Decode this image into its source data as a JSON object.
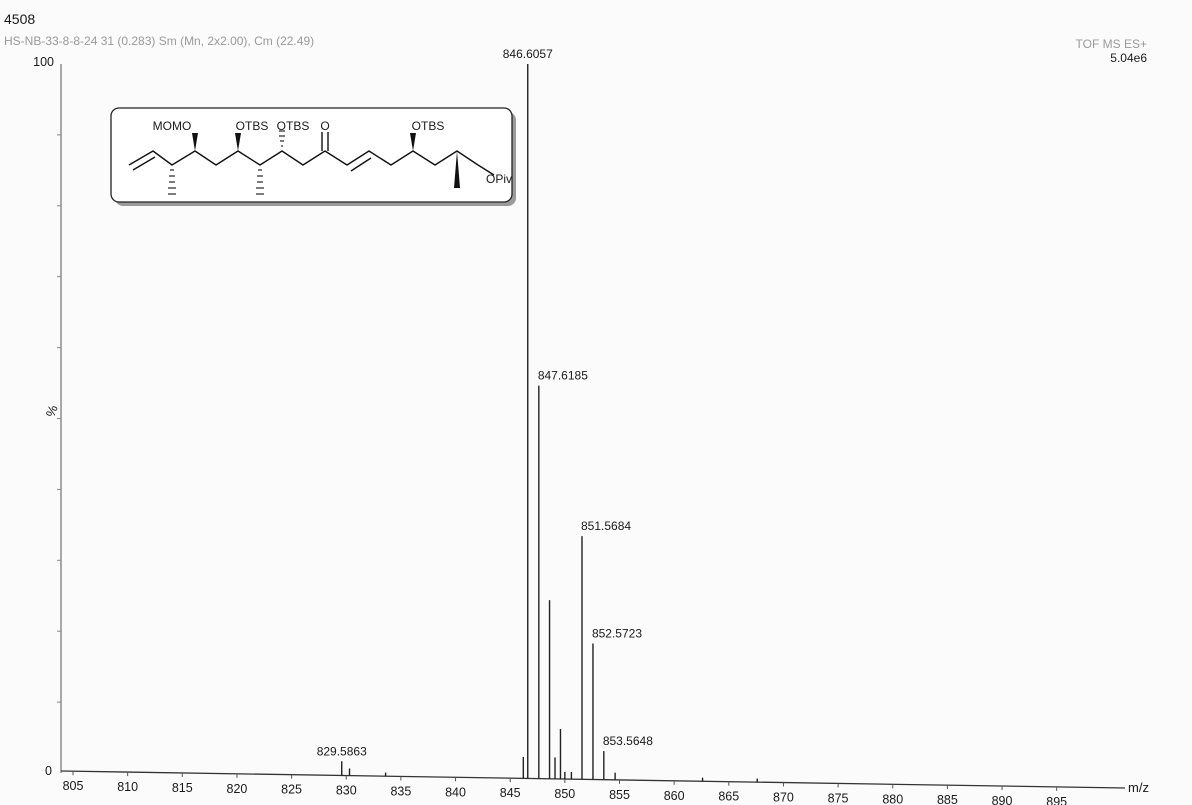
{
  "header": {
    "sample_id": "4508",
    "run_info": "HS-NB-33-8-8-24 31 (0.283) Sm (Mn, 2x2.00), Cm (22.49)",
    "instrument": "TOF MS ES+",
    "max_intensity": "5.04e6"
  },
  "structure": {
    "labels": [
      "MOMO",
      "OTBS",
      "OTBS",
      "O",
      "OTBS",
      "OPiv"
    ]
  },
  "chart_data": {
    "type": "bar",
    "title": "",
    "xlabel": "m/z",
    "ylabel": "%",
    "xlim": [
      802,
      897
    ],
    "ylim": [
      0,
      100
    ],
    "y_ticks": [
      "100",
      "0"
    ],
    "x_ticks": [
      805,
      810,
      815,
      820,
      825,
      830,
      835,
      840,
      845,
      850,
      855,
      860,
      865,
      870,
      875,
      880,
      885,
      890,
      895
    ],
    "labeled_peaks": [
      {
        "mz": 829.5863,
        "intensity": 2,
        "label": "829.5863"
      },
      {
        "mz": 846.6057,
        "intensity": 100,
        "label": "846.6057"
      },
      {
        "mz": 847.6185,
        "intensity": 55,
        "label": "847.6185"
      },
      {
        "mz": 851.5684,
        "intensity": 34,
        "label": "851.5684"
      },
      {
        "mz": 852.5723,
        "intensity": 19,
        "label": "852.5723"
      },
      {
        "mz": 853.5648,
        "intensity": 4,
        "label": "853.5648"
      }
    ],
    "other_peaks": [
      {
        "mz": 846.2,
        "intensity": 3
      },
      {
        "mz": 848.6,
        "intensity": 25
      },
      {
        "mz": 849.1,
        "intensity": 3
      },
      {
        "mz": 849.6,
        "intensity": 7
      },
      {
        "mz": 850.0,
        "intensity": 1
      },
      {
        "mz": 850.6,
        "intensity": 1
      },
      {
        "mz": 854.6,
        "intensity": 1
      },
      {
        "mz": 830.3,
        "intensity": 1
      },
      {
        "mz": 833.6,
        "intensity": 0.5
      },
      {
        "mz": 862.6,
        "intensity": 0.5
      },
      {
        "mz": 867.6,
        "intensity": 0.5
      }
    ]
  }
}
